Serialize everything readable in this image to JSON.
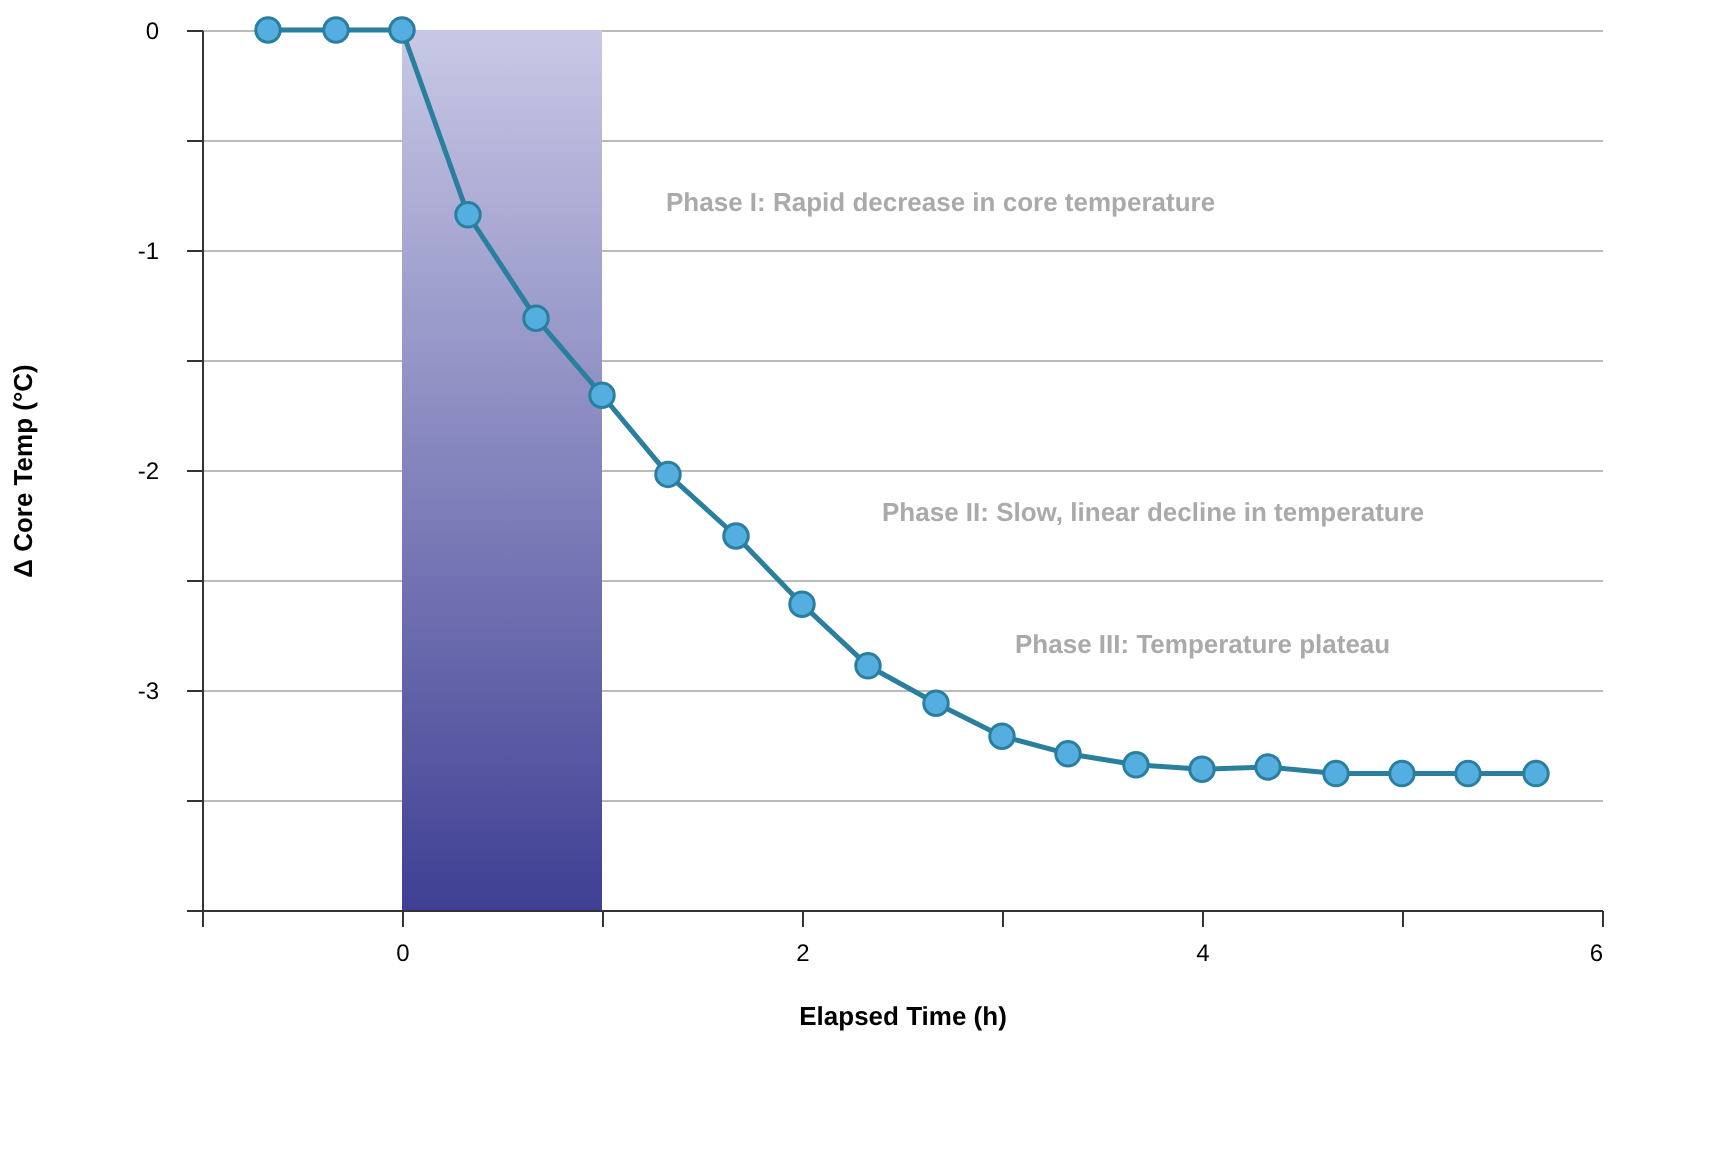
{
  "chart_data": {
    "type": "line",
    "xlabel": "Elapsed Time (h)",
    "ylabel": "Δ Core Temp (°C)",
    "series": [
      {
        "color": "#2a7f9e",
        "x": [
          -0.67,
          -0.33,
          0,
          0.33,
          0.67,
          1,
          1.33,
          1.67,
          2,
          2.33,
          2.67,
          3,
          3.33,
          3.67,
          4,
          4.33,
          4.67,
          5,
          5.33,
          5.67
        ],
        "values": [
          0,
          0,
          0,
          -0.84,
          -1.31,
          -1.66,
          -2.02,
          -2.3,
          -2.61,
          -2.89,
          -3.06,
          -3.21,
          -3.29,
          -3.34,
          -3.36,
          -3.35,
          -3.38,
          -3.38,
          -3.38,
          -3.38
        ]
      }
    ],
    "marker": "circle",
    "xlim": [
      -1,
      6
    ],
    "xticks": [
      {
        "value": -1,
        "label": null
      },
      0,
      {
        "value": 1,
        "label": null
      },
      2,
      {
        "value": 3,
        "label": null
      },
      4,
      {
        "value": 5,
        "label": null
      },
      6
    ],
    "ylim": [
      -4,
      0
    ],
    "yticks": [
      {
        "value": -4,
        "label": null
      },
      {
        "value": -3.5,
        "label": null
      },
      -3,
      {
        "value": -2.5,
        "label": null
      },
      -2,
      {
        "value": -1.5,
        "label": null
      },
      -1,
      {
        "value": -0.5,
        "label": null
      },
      0
    ],
    "grid": "y",
    "bands": [
      {
        "axis": "x",
        "from": 0,
        "to": 1,
        "label": null,
        "color": "#3f3f94"
      }
    ],
    "annotations": [
      "Phase I: Rapid decrease in core temperature",
      "Phase II: Slow, linear decline in temperature",
      "Phase III: Temperature plateau"
    ]
  }
}
